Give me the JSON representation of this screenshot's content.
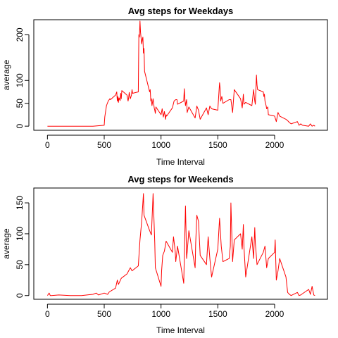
{
  "chart_data": [
    {
      "type": "line",
      "title": "Avg steps for Weekdays",
      "xlabel": "Time Interval",
      "ylabel": "average",
      "xlim": [
        -120,
        2465
      ],
      "ylim": [
        -9,
        233
      ],
      "xticks": [
        0,
        500,
        1000,
        1500,
        2000
      ],
      "yticks": [
        0,
        50,
        100,
        200
      ],
      "color": "#ff0000",
      "series": [
        {
          "x": [
            0,
            100,
            200,
            300,
            400,
            500,
            505,
            520,
            535,
            550,
            555,
            600,
            610,
            615,
            620,
            625,
            630,
            640,
            645,
            650,
            655,
            700,
            710,
            715,
            720,
            730,
            740,
            745,
            750,
            800,
            805,
            810,
            815,
            820,
            830,
            835,
            840,
            845,
            850,
            855,
            900,
            905,
            910,
            915,
            920,
            925,
            930,
            940,
            945,
            950,
            955,
            1000,
            1010,
            1020,
            1030,
            1040,
            1045,
            1050,
            1100,
            1115,
            1130,
            1140,
            1145,
            1200,
            1205,
            1210,
            1215,
            1225,
            1230,
            1245,
            1300,
            1310,
            1315,
            1330,
            1345,
            1400,
            1415,
            1430,
            1445,
            1500,
            1515,
            1520,
            1525,
            1535,
            1545,
            1600,
            1615,
            1630,
            1645,
            1700,
            1715,
            1725,
            1730,
            1745,
            1800,
            1815,
            1825,
            1830,
            1840,
            1845,
            1850,
            1900,
            1905,
            1910,
            1915,
            1925,
            1930,
            1940,
            1945,
            2000,
            2015,
            2030,
            2045,
            2100,
            2115,
            2130,
            2145,
            2200,
            2215,
            2230,
            2245,
            2300,
            2315,
            2330,
            2345,
            2355
          ],
          "y": [
            0,
            0,
            0,
            0,
            0,
            2,
            20,
            45,
            55,
            60,
            58,
            68,
            75,
            55,
            65,
            52,
            62,
            56,
            72,
            60,
            78,
            68,
            55,
            62,
            74,
            60,
            68,
            80,
            72,
            75,
            200,
            195,
            230,
            205,
            180,
            190,
            195,
            160,
            170,
            120,
            75,
            80,
            55,
            60,
            45,
            52,
            60,
            40,
            35,
            28,
            42,
            25,
            38,
            20,
            32,
            15,
            25,
            22,
            40,
            55,
            58,
            58,
            48,
            55,
            82,
            60,
            45,
            58,
            30,
            42,
            18,
            35,
            44,
            35,
            15,
            40,
            25,
            44,
            38,
            35,
            95,
            82,
            55,
            65,
            50,
            58,
            58,
            30,
            80,
            60,
            40,
            70,
            48,
            52,
            45,
            80,
            55,
            48,
            112,
            90,
            80,
            75,
            65,
            70,
            55,
            45,
            38,
            42,
            25,
            22,
            10,
            30,
            22,
            15,
            12,
            8,
            5,
            10,
            2,
            5,
            2,
            0,
            5,
            0,
            2,
            0
          ]
        }
      ]
    },
    {
      "type": "line",
      "title": "Avg steps for Weekends",
      "xlabel": "Time Interval",
      "ylabel": "average",
      "xlim": [
        -120,
        2465
      ],
      "ylim": [
        -6,
        174
      ],
      "xticks": [
        0,
        500,
        1000,
        1500,
        2000
      ],
      "yticks": [
        0,
        50,
        100,
        150
      ],
      "color": "#ff0000",
      "series": [
        {
          "x": [
            0,
            15,
            25,
            35,
            100,
            200,
            300,
            400,
            430,
            450,
            500,
            530,
            545,
            600,
            615,
            625,
            650,
            700,
            730,
            745,
            800,
            815,
            830,
            845,
            850,
            900,
            915,
            930,
            945,
            950,
            1000,
            1005,
            1015,
            1030,
            1045,
            1100,
            1110,
            1125,
            1130,
            1145,
            1200,
            1210,
            1215,
            1225,
            1230,
            1245,
            1300,
            1305,
            1315,
            1330,
            1345,
            1400,
            1415,
            1430,
            1445,
            1500,
            1515,
            1530,
            1545,
            1600,
            1610,
            1615,
            1630,
            1645,
            1700,
            1715,
            1725,
            1730,
            1745,
            1800,
            1815,
            1825,
            1830,
            1845,
            1900,
            1915,
            1930,
            1945,
            2000,
            2005,
            2015,
            2030,
            2045,
            2100,
            2115,
            2130,
            2145,
            2200,
            2215,
            2230,
            2245,
            2300,
            2315,
            2330,
            2345,
            2355
          ],
          "y": [
            0,
            4,
            0,
            0,
            1,
            0,
            0,
            2,
            4,
            1,
            4,
            2,
            6,
            12,
            25,
            18,
            28,
            35,
            45,
            40,
            48,
            90,
            120,
            165,
            130,
            105,
            98,
            165,
            85,
            45,
            15,
            40,
            65,
            72,
            88,
            70,
            95,
            72,
            55,
            80,
            20,
            100,
            145,
            60,
            70,
            105,
            45,
            85,
            130,
            120,
            65,
            50,
            95,
            60,
            30,
            75,
            125,
            80,
            55,
            60,
            80,
            150,
            55,
            90,
            100,
            75,
            115,
            80,
            30,
            95,
            60,
            110,
            85,
            50,
            70,
            80,
            45,
            60,
            70,
            90,
            25,
            40,
            60,
            30,
            5,
            2,
            0,
            5,
            0,
            1,
            3,
            10,
            2,
            15,
            1,
            0
          ]
        }
      ]
    }
  ]
}
